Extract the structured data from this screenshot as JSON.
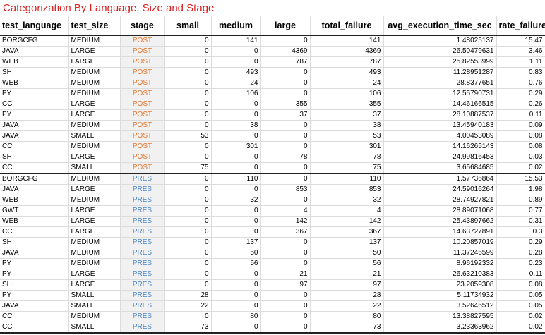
{
  "title": "Categorization By Language, Size and Stage",
  "colors": {
    "title": "#e02020",
    "post": "#e8742a",
    "pres": "#4a86c8"
  },
  "columns": [
    "test_language",
    "test_size",
    "stage",
    "small",
    "medium",
    "large",
    "total_failure",
    "avg_execution_time_sec",
    "rate_failure"
  ],
  "rows": [
    [
      "BORGCFG",
      "MEDIUM",
      "POST",
      "0",
      "141",
      "0",
      "141",
      "1.48025137",
      "15.47"
    ],
    [
      "JAVA",
      "LARGE",
      "POST",
      "0",
      "0",
      "4369",
      "4369",
      "26.50479631",
      "3.46"
    ],
    [
      "WEB",
      "LARGE",
      "POST",
      "0",
      "0",
      "787",
      "787",
      "25.82553999",
      "1.11"
    ],
    [
      "SH",
      "MEDIUM",
      "POST",
      "0",
      "493",
      "0",
      "493",
      "11.28951287",
      "0.83"
    ],
    [
      "WEB",
      "MEDIUM",
      "POST",
      "0",
      "24",
      "0",
      "24",
      "28.8377651",
      "0.76"
    ],
    [
      "PY",
      "MEDIUM",
      "POST",
      "0",
      "106",
      "0",
      "106",
      "12.55790731",
      "0.29"
    ],
    [
      "CC",
      "LARGE",
      "POST",
      "0",
      "0",
      "355",
      "355",
      "14.46166515",
      "0.26"
    ],
    [
      "PY",
      "LARGE",
      "POST",
      "0",
      "0",
      "37",
      "37",
      "28.10887537",
      "0.11"
    ],
    [
      "JAVA",
      "MEDIUM",
      "POST",
      "0",
      "38",
      "0",
      "38",
      "13.45940183",
      "0.09"
    ],
    [
      "JAVA",
      "SMALL",
      "POST",
      "53",
      "0",
      "0",
      "53",
      "4.00453089",
      "0.08"
    ],
    [
      "CC",
      "MEDIUM",
      "POST",
      "0",
      "301",
      "0",
      "301",
      "14.16265143",
      "0.08"
    ],
    [
      "SH",
      "LARGE",
      "POST",
      "0",
      "0",
      "78",
      "78",
      "24.99816453",
      "0.03"
    ],
    [
      "CC",
      "SMALL",
      "POST",
      "75",
      "0",
      "0",
      "75",
      "3.65684685",
      "0.02"
    ],
    [
      "BORGCFG",
      "MEDIUM",
      "PRES",
      "0",
      "110",
      "0",
      "110",
      "1.57736864",
      "15.53"
    ],
    [
      "JAVA",
      "LARGE",
      "PRES",
      "0",
      "0",
      "853",
      "853",
      "24.59016264",
      "1.98"
    ],
    [
      "WEB",
      "MEDIUM",
      "PRES",
      "0",
      "32",
      "0",
      "32",
      "28.74927821",
      "0.89"
    ],
    [
      "GWT",
      "LARGE",
      "PRES",
      "0",
      "0",
      "4",
      "4",
      "28.89071068",
      "0.77"
    ],
    [
      "WEB",
      "LARGE",
      "PRES",
      "0",
      "0",
      "142",
      "142",
      "25.43897662",
      "0.31"
    ],
    [
      "CC",
      "LARGE",
      "PRES",
      "0",
      "0",
      "367",
      "367",
      "14.63727891",
      "0.3"
    ],
    [
      "SH",
      "MEDIUM",
      "PRES",
      "0",
      "137",
      "0",
      "137",
      "10.20857019",
      "0.29"
    ],
    [
      "JAVA",
      "MEDIUM",
      "PRES",
      "0",
      "50",
      "0",
      "50",
      "11.37246599",
      "0.28"
    ],
    [
      "PY",
      "MEDIUM",
      "PRES",
      "0",
      "56",
      "0",
      "56",
      "8.96192332",
      "0.23"
    ],
    [
      "PY",
      "LARGE",
      "PRES",
      "0",
      "0",
      "21",
      "21",
      "26.63210383",
      "0.11"
    ],
    [
      "SH",
      "LARGE",
      "PRES",
      "0",
      "0",
      "97",
      "97",
      "23.2059308",
      "0.08"
    ],
    [
      "PY",
      "SMALL",
      "PRES",
      "28",
      "0",
      "0",
      "28",
      "5.11734932",
      "0.05"
    ],
    [
      "JAVA",
      "SMALL",
      "PRES",
      "22",
      "0",
      "0",
      "22",
      "3.52646512",
      "0.05"
    ],
    [
      "CC",
      "MEDIUM",
      "PRES",
      "0",
      "80",
      "0",
      "80",
      "13.38827595",
      "0.02"
    ],
    [
      "CC",
      "SMALL",
      "PRES",
      "73",
      "0",
      "0",
      "73",
      "3.23363962",
      "0.02"
    ]
  ]
}
